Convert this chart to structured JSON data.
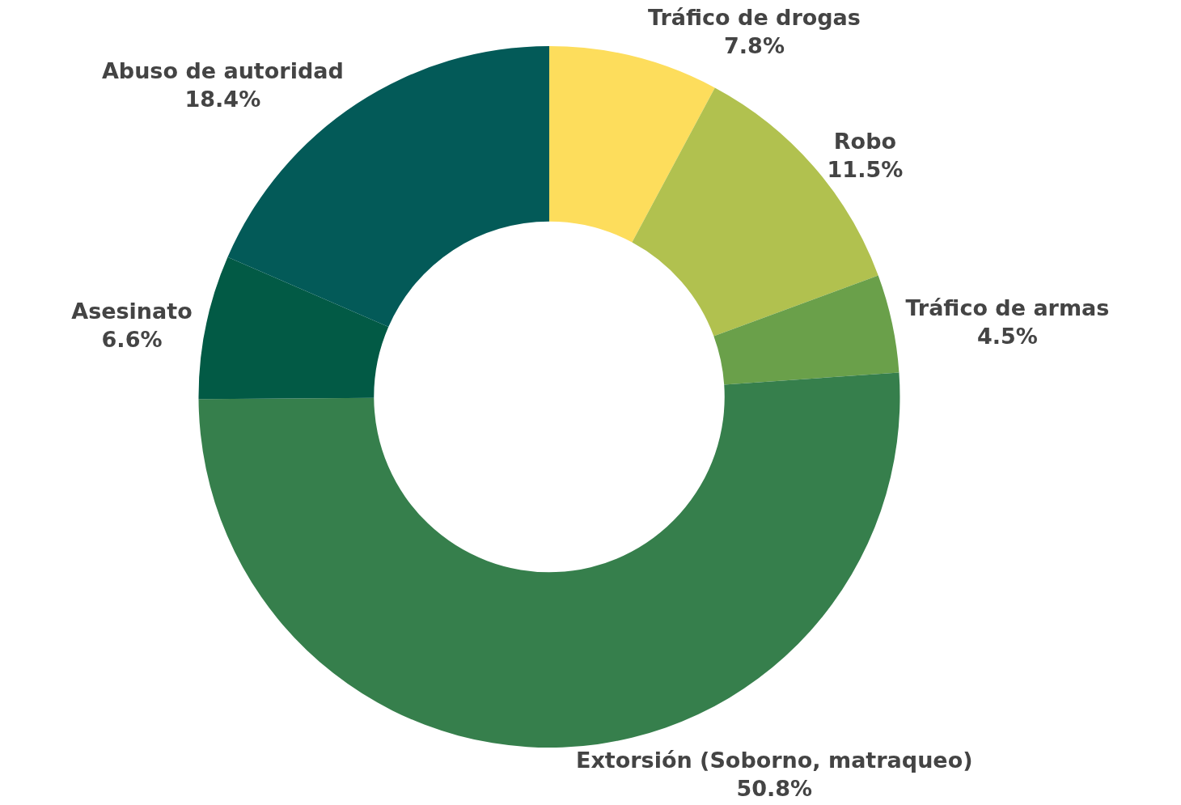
{
  "chart_data": {
    "type": "donut",
    "categories": [
      "Tráfico de drogas",
      "Robo",
      "Tráfico de armas",
      "Extorsión (Soborno, matraqueo)",
      "Asesinato",
      "Abuso de autoridad"
    ],
    "values": [
      7.8,
      11.5,
      4.5,
      50.8,
      6.6,
      18.4
    ],
    "value_labels": [
      "7.8%",
      "11.5%",
      "4.5%",
      "50.8%",
      "6.6%",
      "18.4%"
    ],
    "colors": [
      "#fddd5c",
      "#b1c14f",
      "#6aa04a",
      "#367f4c",
      "#025a45",
      "#035a58"
    ],
    "legend": false
  }
}
